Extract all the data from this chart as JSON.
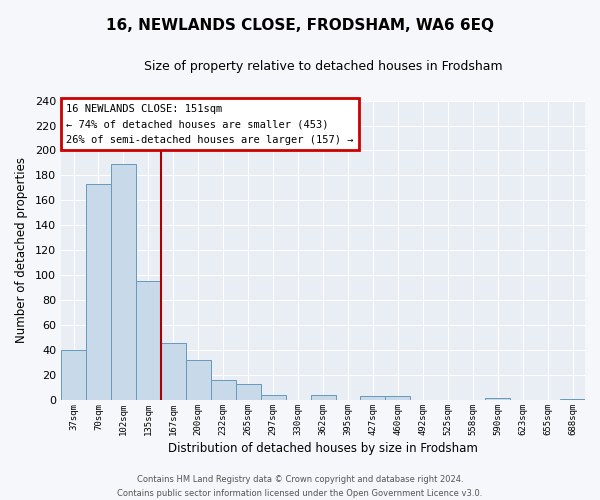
{
  "title": "16, NEWLANDS CLOSE, FRODSHAM, WA6 6EQ",
  "subtitle": "Size of property relative to detached houses in Frodsham",
  "xlabel": "Distribution of detached houses by size in Frodsham",
  "ylabel": "Number of detached properties",
  "bar_color": "#c8daea",
  "bar_edge_color": "#6699bb",
  "categories": [
    "37sqm",
    "70sqm",
    "102sqm",
    "135sqm",
    "167sqm",
    "200sqm",
    "232sqm",
    "265sqm",
    "297sqm",
    "330sqm",
    "362sqm",
    "395sqm",
    "427sqm",
    "460sqm",
    "492sqm",
    "525sqm",
    "558sqm",
    "590sqm",
    "623sqm",
    "655sqm",
    "688sqm"
  ],
  "values": [
    40,
    173,
    189,
    95,
    46,
    32,
    16,
    13,
    4,
    0,
    4,
    0,
    3,
    3,
    0,
    0,
    0,
    2,
    0,
    0,
    1
  ],
  "ylim": [
    0,
    240
  ],
  "yticks": [
    0,
    20,
    40,
    60,
    80,
    100,
    120,
    140,
    160,
    180,
    200,
    220,
    240
  ],
  "vline_x": 3.5,
  "vline_color": "#aa0000",
  "annotation_title": "16 NEWLANDS CLOSE: 151sqm",
  "annotation_line1": "← 74% of detached houses are smaller (453)",
  "annotation_line2": "26% of semi-detached houses are larger (157) →",
  "annotation_box_facecolor": "#ffffff",
  "annotation_box_edgecolor": "#cc0000",
  "footer1": "Contains HM Land Registry data © Crown copyright and database right 2024.",
  "footer2": "Contains public sector information licensed under the Open Government Licence v3.0.",
  "plot_bg_color": "#e8eef4",
  "fig_bg_color": "#f5f7fa",
  "grid_color": "#ffffff",
  "title_fontsize": 11,
  "subtitle_fontsize": 9
}
